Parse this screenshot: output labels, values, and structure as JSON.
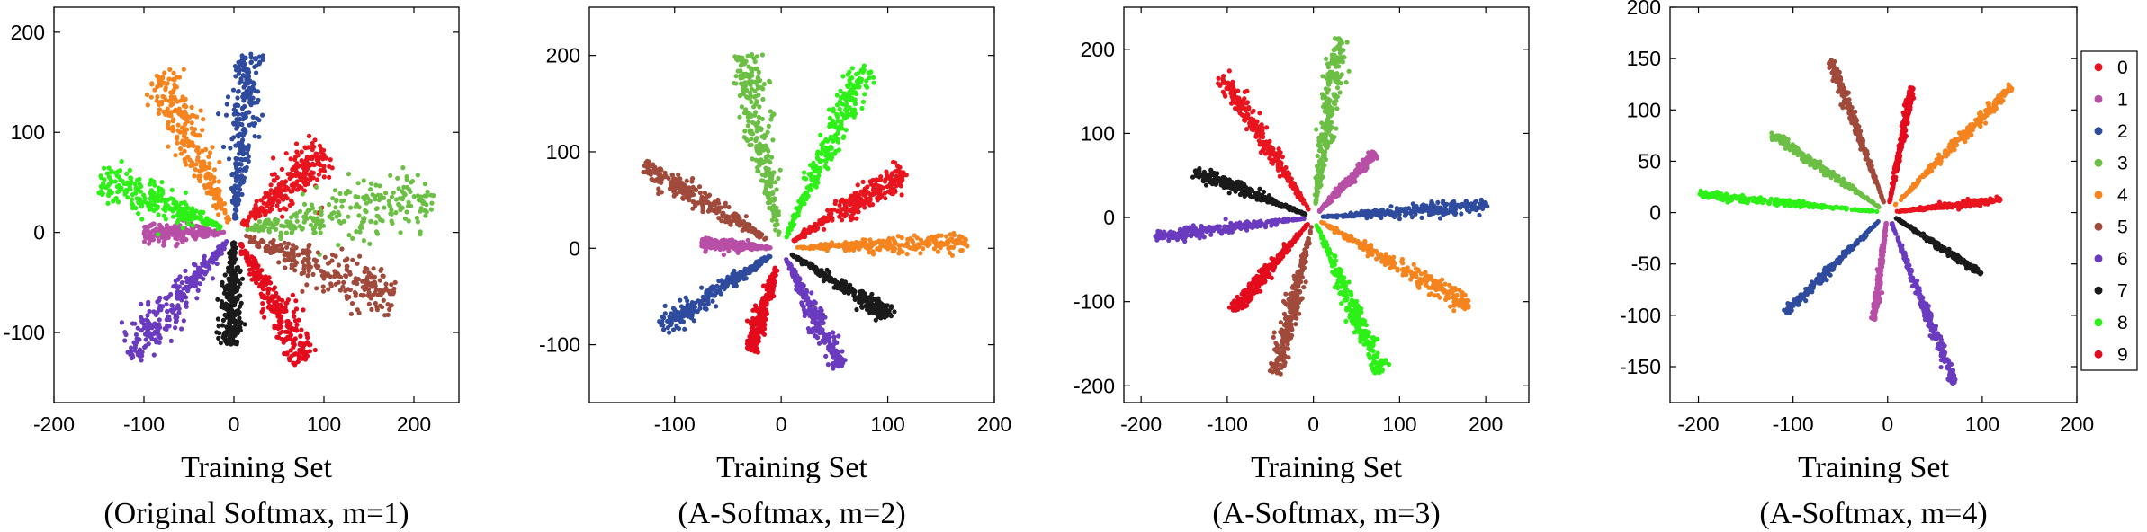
{
  "chart_data": [
    {
      "type": "scatter",
      "title": "",
      "xlabel": "Training Set",
      "caption": "(Original Softmax, m=1)",
      "xlim": [
        -200,
        250
      ],
      "ylim": [
        -170,
        225
      ],
      "xticks": [
        -200,
        -100,
        0,
        100,
        200
      ],
      "yticks": [
        -100,
        0,
        100,
        200
      ],
      "clusters": [
        {
          "label": "0",
          "angle_deg": 39,
          "r_min": 12,
          "r_max": 130,
          "spread": 0.13
        },
        {
          "label": "1",
          "angle_deg": 180,
          "r_min": 10,
          "r_max": 100,
          "spread": 0.08
        },
        {
          "label": "2",
          "angle_deg": 85,
          "r_min": 12,
          "r_max": 180,
          "spread": 0.08
        },
        {
          "label": "3",
          "angle_deg": 9,
          "r_min": 12,
          "r_max": 225,
          "spread": 0.1
        },
        {
          "label": "4",
          "angle_deg": 118,
          "r_min": 12,
          "r_max": 180,
          "spread": 0.1
        },
        {
          "label": "5",
          "angle_deg": -20,
          "r_min": 12,
          "r_max": 190,
          "spread": 0.1
        },
        {
          "label": "6",
          "angle_deg": -133,
          "r_min": 12,
          "r_max": 170,
          "spread": 0.09
        },
        {
          "label": "7",
          "angle_deg": -92,
          "r_min": 10,
          "r_max": 112,
          "spread": 0.09
        },
        {
          "label": "8",
          "angle_deg": 160,
          "r_min": 12,
          "r_max": 160,
          "spread": 0.1
        },
        {
          "label": "9",
          "angle_deg": -58,
          "r_min": 12,
          "r_max": 150,
          "spread": 0.09
        }
      ]
    },
    {
      "type": "scatter",
      "title": "",
      "xlabel": "Training Set",
      "caption": "(A-Softmax, m=2)",
      "xlim": [
        -180,
        200
      ],
      "ylim": [
        -160,
        250
      ],
      "xticks": [
        -100,
        0,
        100,
        200
      ],
      "yticks": [
        -100,
        0,
        100,
        200
      ],
      "clusters": [
        {
          "label": "0",
          "angle_deg": 34,
          "r_min": 12,
          "r_max": 140,
          "spread": 0.07
        },
        {
          "label": "1",
          "angle_deg": 176,
          "r_min": 10,
          "r_max": 75,
          "spread": 0.06
        },
        {
          "label": "2",
          "angle_deg": -144,
          "r_min": 12,
          "r_max": 140,
          "spread": 0.06
        },
        {
          "label": "3",
          "angle_deg": 100,
          "r_min": 12,
          "r_max": 205,
          "spread": 0.06
        },
        {
          "label": "4",
          "angle_deg": 2,
          "r_min": 15,
          "r_max": 175,
          "spread": 0.04
        },
        {
          "label": "5",
          "angle_deg": 146,
          "r_min": 12,
          "r_max": 155,
          "spread": 0.06
        },
        {
          "label": "6",
          "angle_deg": -66,
          "r_min": 12,
          "r_max": 135,
          "spread": 0.05
        },
        {
          "label": "7",
          "angle_deg": -34,
          "r_min": 12,
          "r_max": 125,
          "spread": 0.05
        },
        {
          "label": "8",
          "angle_deg": 67,
          "r_min": 12,
          "r_max": 205,
          "spread": 0.05
        },
        {
          "label": "9",
          "angle_deg": -105,
          "r_min": 20,
          "r_max": 110,
          "spread": 0.05
        }
      ]
    },
    {
      "type": "scatter",
      "title": "",
      "xlabel": "Training Set",
      "caption": "(A-Softmax, m=3)",
      "xlim": [
        -220,
        250
      ],
      "ylim": [
        -220,
        250
      ],
      "xticks": [
        -200,
        -100,
        0,
        100,
        200
      ],
      "yticks": [
        -200,
        -100,
        0,
        100,
        200
      ],
      "clusters": [
        {
          "label": "0",
          "angle_deg": 122,
          "r_min": 10,
          "r_max": 200,
          "spread": 0.04
        },
        {
          "label": "1",
          "angle_deg": 47,
          "r_min": 10,
          "r_max": 105,
          "spread": 0.04
        },
        {
          "label": "2",
          "angle_deg": 4,
          "r_min": 10,
          "r_max": 205,
          "spread": 0.03
        },
        {
          "label": "3",
          "angle_deg": 82,
          "r_min": 10,
          "r_max": 215,
          "spread": 0.04
        },
        {
          "label": "4",
          "angle_deg": -30,
          "r_min": 10,
          "r_max": 210,
          "spread": 0.04
        },
        {
          "label": "5",
          "angle_deg": -103,
          "r_min": 10,
          "r_max": 190,
          "spread": 0.04
        },
        {
          "label": "6",
          "angle_deg": -173,
          "r_min": 10,
          "r_max": 185,
          "spread": 0.03
        },
        {
          "label": "7",
          "angle_deg": 158,
          "r_min": 10,
          "r_max": 150,
          "spread": 0.04
        },
        {
          "label": "8",
          "angle_deg": -67,
          "r_min": 10,
          "r_max": 200,
          "spread": 0.04
        },
        {
          "label": "9",
          "angle_deg": -130,
          "r_min": 10,
          "r_max": 145,
          "spread": 0.04
        }
      ]
    },
    {
      "type": "scatter",
      "title": "",
      "xlabel": "Training Set",
      "caption": "(A-Softmax, m=4)",
      "xlim": [
        -230,
        200
      ],
      "ylim": [
        -185,
        200
      ],
      "xticks": [
        -200,
        -100,
        0,
        100,
        200
      ],
      "yticks": [
        -150,
        -100,
        -50,
        0,
        50,
        100,
        150,
        200
      ],
      "clusters": [
        {
          "label": "0",
          "angle_deg": 6,
          "r_min": 10,
          "r_max": 120,
          "spread": 0.02
        },
        {
          "label": "1",
          "angle_deg": -98,
          "r_min": 10,
          "r_max": 105,
          "spread": 0.02
        },
        {
          "label": "2",
          "angle_deg": -138,
          "r_min": 10,
          "r_max": 145,
          "spread": 0.02
        },
        {
          "label": "3",
          "angle_deg": 148,
          "r_min": 10,
          "r_max": 145,
          "spread": 0.02
        },
        {
          "label": "4",
          "angle_deg": 43,
          "r_min": 10,
          "r_max": 180,
          "spread": 0.02
        },
        {
          "label": "5",
          "angle_deg": 112,
          "r_min": 10,
          "r_max": 160,
          "spread": 0.02
        },
        {
          "label": "6",
          "angle_deg": -67,
          "r_min": 10,
          "r_max": 180,
          "spread": 0.02
        },
        {
          "label": "7",
          "angle_deg": -31,
          "r_min": 10,
          "r_max": 115,
          "spread": 0.02
        },
        {
          "label": "8",
          "angle_deg": 175,
          "r_min": 10,
          "r_max": 200,
          "spread": 0.015
        },
        {
          "label": "9",
          "angle_deg": 78,
          "r_min": 10,
          "r_max": 125,
          "spread": 0.02
        }
      ]
    }
  ],
  "legend": {
    "placement": "right",
    "entries": [
      {
        "label": "0",
        "color": "#e8141e"
      },
      {
        "label": "1",
        "color": "#b84fa6"
      },
      {
        "label": "2",
        "color": "#2e4b9e"
      },
      {
        "label": "3",
        "color": "#6cbf45"
      },
      {
        "label": "4",
        "color": "#f5841f"
      },
      {
        "label": "5",
        "color": "#a04a3c"
      },
      {
        "label": "6",
        "color": "#6a3bbf"
      },
      {
        "label": "7",
        "color": "#1a1a1a"
      },
      {
        "label": "8",
        "color": "#2cf016"
      },
      {
        "label": "9",
        "color": "#e30b1c"
      }
    ]
  }
}
